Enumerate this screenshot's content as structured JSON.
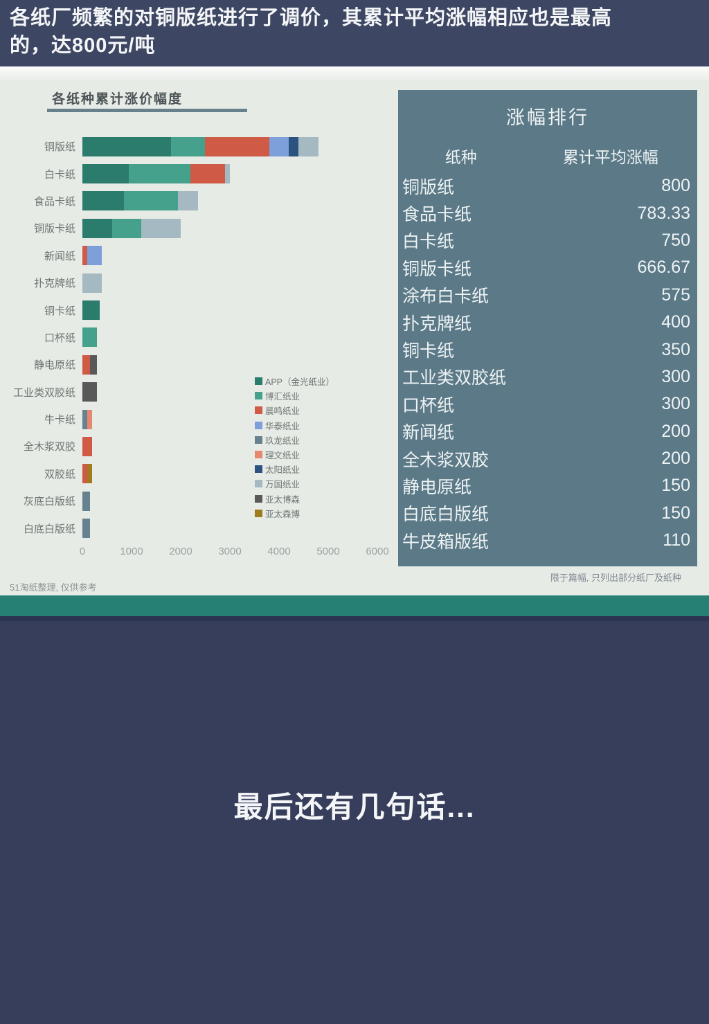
{
  "header": {
    "line1": "各纸厂频繁的对铜版纸进行了调价，其累计平均涨幅相应也是最高",
    "line2": "的，达800元/吨"
  },
  "chart_data": {
    "type": "bar",
    "orientation": "horizontal",
    "stacked": true,
    "title": "各纸种累计涨价幅度",
    "xlabel": "",
    "ylabel": "",
    "xlim": [
      0,
      6000
    ],
    "x_ticks": [
      0,
      1000,
      2000,
      3000,
      4000,
      5000,
      6000
    ],
    "grid": false,
    "legend_position": "center-right",
    "legend": [
      {
        "label": "APP（金光纸业）",
        "color": "#2b7c6c"
      },
      {
        "label": "博汇纸业",
        "color": "#45a18c"
      },
      {
        "label": "晨鸣纸业",
        "color": "#cf5a45"
      },
      {
        "label": "华泰纸业",
        "color": "#7da0da"
      },
      {
        "label": "玖龙纸业",
        "color": "#66828f"
      },
      {
        "label": "理文纸业",
        "color": "#e8876f"
      },
      {
        "label": "太阳纸业",
        "color": "#2c537f"
      },
      {
        "label": "万国纸业",
        "color": "#a4b9c1"
      },
      {
        "label": "亚太博森",
        "color": "#595959"
      },
      {
        "label": "亚太森博",
        "color": "#a07d1c"
      }
    ],
    "categories": [
      "铜版纸",
      "白卡纸",
      "食品卡纸",
      "铜版卡纸",
      "新闻纸",
      "扑克牌纸",
      "铜卡纸",
      "口杯纸",
      "静电原纸",
      "工业类双胶纸",
      "牛卡纸",
      "全木浆双胶",
      "双胶纸",
      "灰底白版纸",
      "白底白版纸"
    ],
    "rows": [
      {
        "label": "铜版纸",
        "segments": [
          {
            "factory": "APP（金光纸业）",
            "value": 1800
          },
          {
            "factory": "博汇纸业",
            "value": 700
          },
          {
            "factory": "晨鸣纸业",
            "value": 1300
          },
          {
            "factory": "华泰纸业",
            "value": 400
          },
          {
            "factory": "太阳纸业",
            "value": 200
          },
          {
            "factory": "万国纸业",
            "value": 400
          }
        ]
      },
      {
        "label": "白卡纸",
        "segments": [
          {
            "factory": "APP（金光纸业）",
            "value": 950
          },
          {
            "factory": "博汇纸业",
            "value": 1250
          },
          {
            "factory": "晨鸣纸业",
            "value": 700
          },
          {
            "factory": "万国纸业",
            "value": 100
          }
        ]
      },
      {
        "label": "食品卡纸",
        "segments": [
          {
            "factory": "APP（金光纸业）",
            "value": 850
          },
          {
            "factory": "博汇纸业",
            "value": 1100
          },
          {
            "factory": "万国纸业",
            "value": 400
          }
        ]
      },
      {
        "label": "铜版卡纸",
        "segments": [
          {
            "factory": "APP（金光纸业）",
            "value": 600
          },
          {
            "factory": "博汇纸业",
            "value": 600
          },
          {
            "factory": "万国纸业",
            "value": 800
          }
        ]
      },
      {
        "label": "新闻纸",
        "segments": [
          {
            "factory": "晨鸣纸业",
            "value": 100
          },
          {
            "factory": "华泰纸业",
            "value": 300
          }
        ]
      },
      {
        "label": "扑克牌纸",
        "segments": [
          {
            "factory": "万国纸业",
            "value": 400
          }
        ]
      },
      {
        "label": "铜卡纸",
        "segments": [
          {
            "factory": "APP（金光纸业）",
            "value": 350
          }
        ]
      },
      {
        "label": "口杯纸",
        "segments": [
          {
            "factory": "博汇纸业",
            "value": 300
          }
        ]
      },
      {
        "label": "静电原纸",
        "segments": [
          {
            "factory": "晨鸣纸业",
            "value": 150
          },
          {
            "factory": "亚太博森",
            "value": 150
          }
        ]
      },
      {
        "label": "工业类双胶纸",
        "segments": [
          {
            "factory": "亚太博森",
            "value": 300
          }
        ]
      },
      {
        "label": "牛卡纸",
        "segments": [
          {
            "factory": "玖龙纸业",
            "value": 100
          },
          {
            "factory": "理文纸业",
            "value": 100
          }
        ]
      },
      {
        "label": "全木浆双胶",
        "segments": [
          {
            "factory": "晨鸣纸业",
            "value": 200
          }
        ]
      },
      {
        "label": "双胶纸",
        "segments": [
          {
            "factory": "晨鸣纸业",
            "value": 100
          },
          {
            "factory": "亚太森博",
            "value": 100
          }
        ]
      },
      {
        "label": "灰底白版纸",
        "segments": [
          {
            "factory": "玖龙纸业",
            "value": 150
          }
        ]
      },
      {
        "label": "白底白版纸",
        "segments": [
          {
            "factory": "玖龙纸业",
            "value": 150
          }
        ]
      }
    ]
  },
  "table": {
    "title": "涨幅排行",
    "col1": "纸种",
    "col2": "累计平均涨幅",
    "rows": [
      {
        "name": "铜版纸",
        "value": "800"
      },
      {
        "name": "食品卡纸",
        "value": "783.33"
      },
      {
        "name": "白卡纸",
        "value": "750"
      },
      {
        "name": "铜版卡纸",
        "value": "666.67"
      },
      {
        "name": "涂布白卡纸",
        "value": "575"
      },
      {
        "name": "扑克牌纸",
        "value": "400"
      },
      {
        "name": "铜卡纸",
        "value": "350"
      },
      {
        "name": "工业类双胶纸",
        "value": "300"
      },
      {
        "name": "口杯纸",
        "value": "300"
      },
      {
        "name": "新闻纸",
        "value": "200"
      },
      {
        "name": "全木浆双胶",
        "value": "200"
      },
      {
        "name": "静电原纸",
        "value": "150"
      },
      {
        "name": "白底白版纸",
        "value": "150"
      },
      {
        "name": "牛皮箱版纸",
        "value": "110"
      }
    ]
  },
  "notes": {
    "right": "限于篇幅, 只列出部分纸厂及纸种",
    "left": "51淘纸整理, 仅供参考"
  },
  "footer": {
    "headline": "最后还有几句话..."
  },
  "colors": {
    "header_bg": "#3d4662",
    "section_bg": "#e7ebe5",
    "panel_bg": "#5b7987",
    "teal_bar": "#278074",
    "bottom_bg": "#363e5b",
    "title_underline": "#66818c"
  }
}
